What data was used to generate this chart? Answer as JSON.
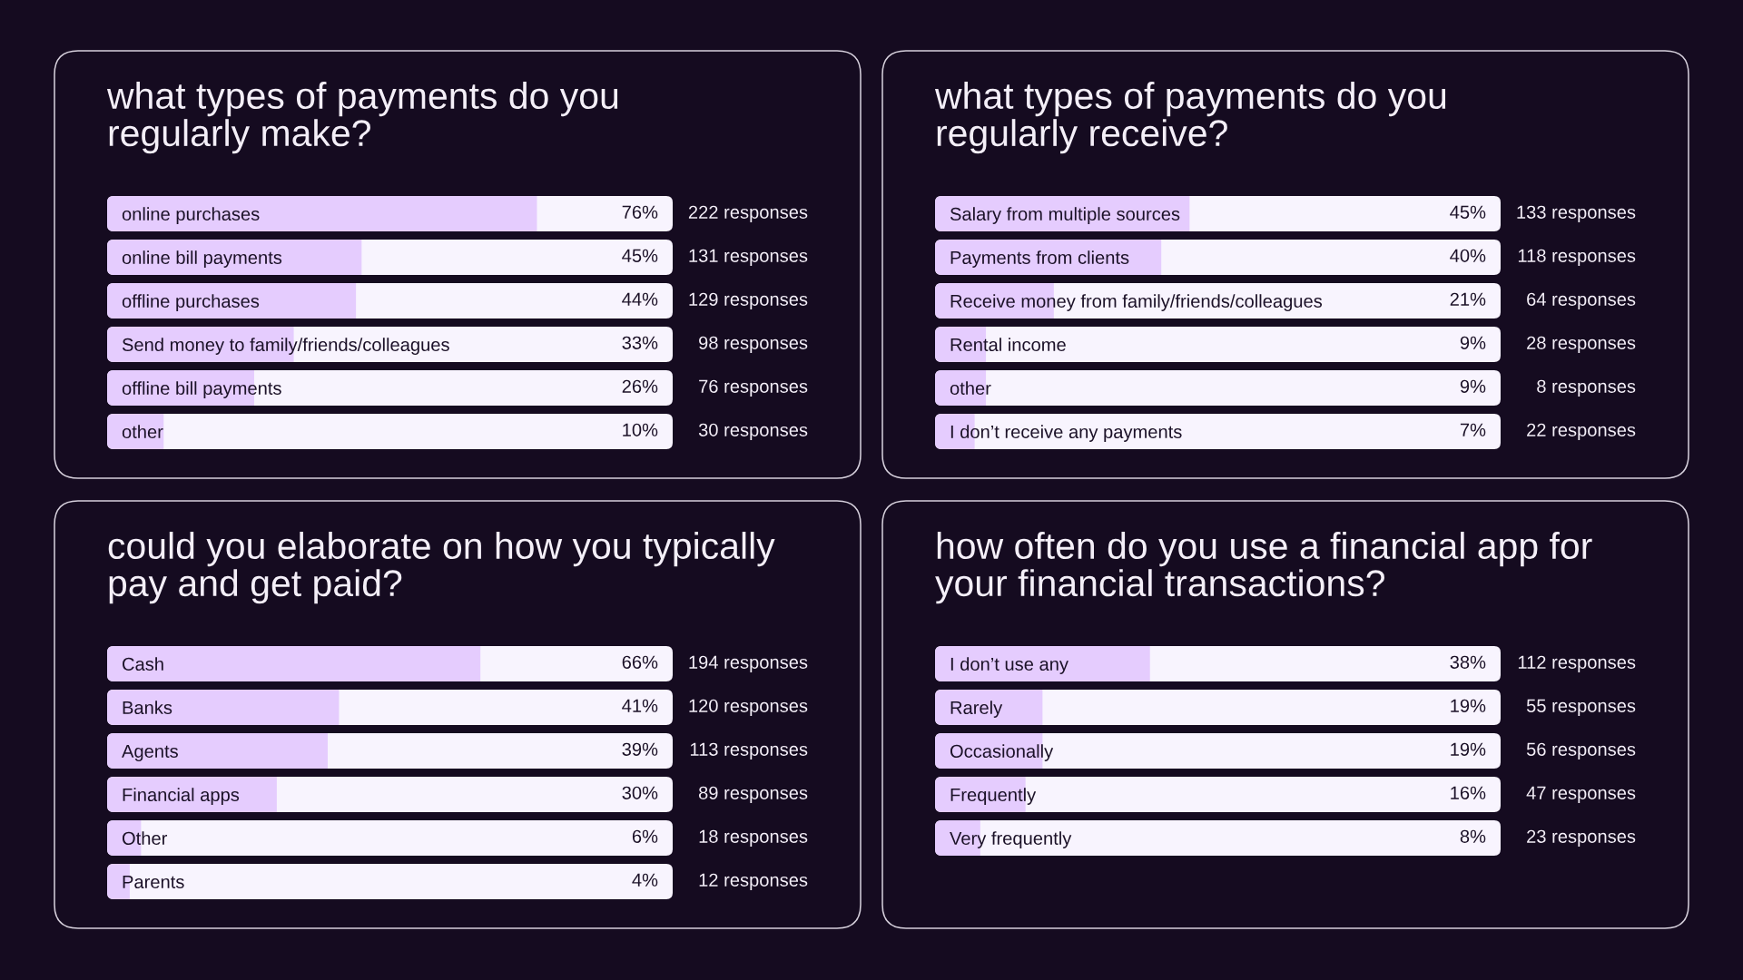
{
  "chart_data": [
    {
      "type": "bar",
      "orientation": "horizontal",
      "title": "what types of payments do you\nregularly make?",
      "categories": [
        "online purchases",
        "online bill payments",
        "offline purchases",
        "Send money to family/friends/colleagues",
        "offline bill payments",
        "other"
      ],
      "values": [
        76,
        45,
        44,
        33,
        26,
        10
      ],
      "value_labels": [
        "76%",
        "45%",
        "44%",
        "33%",
        "26%",
        "10%"
      ],
      "color": "#e5ccfe",
      "xlim": [
        0,
        100
      ],
      "tick_labels": "y",
      "annotations": [
        "222 responses",
        "131 responses",
        "129 responses",
        "98 responses",
        "76 responses",
        "30 responses"
      ]
    },
    {
      "type": "bar",
      "orientation": "horizontal",
      "title": "what types of payments do you\nregularly receive?",
      "categories": [
        "Salary from multiple sources",
        "Payments from clients",
        "Receive money from family/friends/colleagues",
        "Rental income",
        "other",
        "I don’t receive any payments"
      ],
      "values": [
        45,
        40,
        21,
        9,
        9,
        7
      ],
      "value_labels": [
        "45%",
        "40%",
        "21%",
        "9%",
        "9%",
        "7%"
      ],
      "color": "#e5ccfe",
      "xlim": [
        0,
        100
      ],
      "tick_labels": "y",
      "annotations": [
        "133 responses",
        "118 responses",
        "64 responses",
        "28 responses",
        "8 responses",
        "22 responses"
      ]
    },
    {
      "type": "bar",
      "orientation": "horizontal",
      "title": "could you elaborate on how you typically\npay and get paid?",
      "categories": [
        "Cash",
        "Banks",
        "Agents",
        "Financial apps",
        "Other",
        "Parents"
      ],
      "values": [
        66,
        41,
        39,
        30,
        6,
        4
      ],
      "value_labels": [
        "66%",
        "41%",
        "39%",
        "30%",
        "6%",
        "4%"
      ],
      "color": "#e5ccfe",
      "xlim": [
        0,
        100
      ],
      "tick_labels": "y",
      "annotations": [
        "194 responses",
        "120 responses",
        "113 responses",
        "89 responses",
        "18 responses",
        "12 responses"
      ]
    },
    {
      "type": "bar",
      "orientation": "horizontal",
      "title": "how often do you use a financial app for\nyour financial transactions?",
      "categories": [
        "I don’t use any",
        "Rarely",
        "Occasionally",
        "Frequently",
        "Very frequently"
      ],
      "values": [
        38,
        19,
        19,
        16,
        8
      ],
      "value_labels": [
        "38%",
        "19%",
        "19%",
        "16%",
        "8%"
      ],
      "color": "#e5ccfe",
      "xlim": [
        0,
        100
      ],
      "tick_labels": "y",
      "annotations": [
        "112 responses",
        "55 responses",
        "56 responses",
        "47 responses",
        "23 responses"
      ]
    }
  ]
}
